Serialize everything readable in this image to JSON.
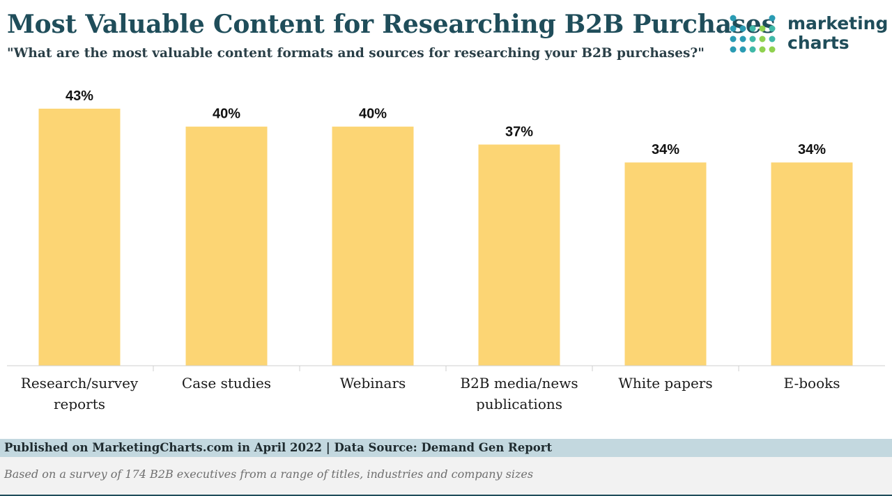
{
  "header": {
    "title": "Most Valuable Content for Researching B2B Purchases",
    "subtitle": "\"What are the most valuable content formats and sources for researching your B2B purchases?\""
  },
  "logo": {
    "line1": "marketing",
    "line2": "charts",
    "dot_colors": [
      "#2a9bb3",
      "#3fb8a8",
      "#8fd14f"
    ]
  },
  "chart_data": {
    "type": "bar",
    "categories": [
      [
        "Research/survey",
        "reports"
      ],
      [
        "Case studies"
      ],
      [
        "Webinars"
      ],
      [
        "B2B media/news",
        "publications"
      ],
      [
        "White papers"
      ],
      [
        "E-books"
      ]
    ],
    "values": [
      43,
      40,
      40,
      37,
      34,
      34
    ],
    "value_labels": [
      "43%",
      "40%",
      "40%",
      "37%",
      "34%",
      "34%"
    ],
    "unit": "%",
    "ylim": [
      0,
      43
    ],
    "bar_color": "#fcd574",
    "grid": false,
    "legend": "none"
  },
  "footer": {
    "published": "Published on MarketingCharts.com in April 2022 | Data Source: Demand Gen Report",
    "note": "Based on a survey of 174 B2B executives from a range of titles, industries and company sizes"
  },
  "colors": {
    "title": "#1f4d5a",
    "footer_bar": "#c3d8df",
    "footer_note_bg": "#f2f2f2"
  }
}
